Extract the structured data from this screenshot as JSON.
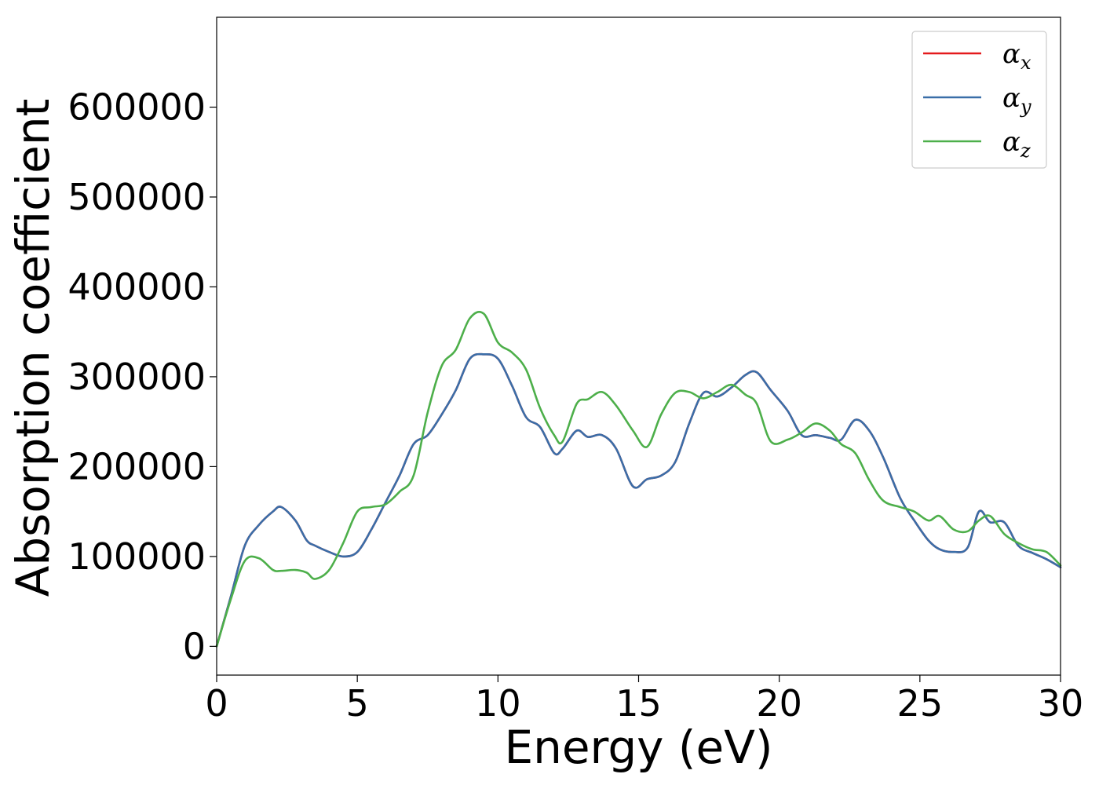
{
  "chart_data": {
    "type": "line",
    "xlabel": "Energy (eV)",
    "ylabel": "Absorption coefficient",
    "xlim": [
      0,
      30
    ],
    "ylim": [
      -32000,
      700000
    ],
    "xticks": [
      0,
      5,
      10,
      15,
      20,
      25,
      30
    ],
    "yticks": [
      0,
      100000,
      200000,
      300000,
      400000,
      500000,
      600000
    ],
    "grid": false,
    "legend_position": "top-right",
    "legend": [
      {
        "base": "α",
        "sub": "x"
      },
      {
        "base": "α",
        "sub": "y"
      },
      {
        "base": "α",
        "sub": "z"
      }
    ],
    "x": [
      0,
      0.5,
      1.0,
      1.5,
      2.0,
      2.3,
      2.8,
      3.2,
      3.5,
      4.0,
      4.5,
      5.0,
      5.5,
      6.0,
      6.5,
      7.0,
      7.5,
      8.0,
      8.5,
      9.0,
      9.5,
      10.0,
      10.5,
      11.0,
      11.5,
      12.0,
      12.3,
      12.8,
      13.2,
      13.7,
      14.2,
      14.8,
      15.3,
      15.8,
      16.3,
      16.8,
      17.3,
      17.8,
      18.3,
      18.8,
      19.2,
      19.7,
      20.3,
      20.8,
      21.3,
      21.8,
      22.2,
      22.7,
      23.2,
      23.7,
      24.3,
      24.8,
      25.3,
      25.7,
      26.2,
      26.7,
      27.1,
      27.5,
      28.0,
      28.5,
      29.0,
      29.5,
      30.0
    ],
    "series": [
      {
        "name": "αx",
        "color": "#e41a1c",
        "values": [
          0,
          55000,
          112000,
          135000,
          150000,
          155000,
          140000,
          118000,
          112000,
          105000,
          100000,
          105000,
          130000,
          160000,
          190000,
          225000,
          235000,
          258000,
          285000,
          320000,
          325000,
          320000,
          290000,
          255000,
          244000,
          215000,
          220000,
          240000,
          233000,
          235000,
          220000,
          178000,
          186000,
          190000,
          205000,
          248000,
          282000,
          278000,
          288000,
          302000,
          305000,
          285000,
          262000,
          235000,
          235000,
          232000,
          230000,
          252000,
          240000,
          210000,
          165000,
          140000,
          118000,
          108000,
          105000,
          110000,
          150000,
          138000,
          138000,
          112000,
          104000,
          97000,
          88000
        ]
      },
      {
        "name": "αy",
        "color": "#3a6ea8",
        "values": [
          0,
          55000,
          112000,
          135000,
          150000,
          155000,
          140000,
          118000,
          112000,
          105000,
          100000,
          105000,
          130000,
          160000,
          190000,
          225000,
          235000,
          258000,
          285000,
          320000,
          325000,
          320000,
          290000,
          255000,
          244000,
          215000,
          220000,
          240000,
          233000,
          235000,
          220000,
          178000,
          186000,
          190000,
          205000,
          248000,
          282000,
          278000,
          288000,
          302000,
          305000,
          285000,
          262000,
          235000,
          235000,
          232000,
          230000,
          252000,
          240000,
          210000,
          165000,
          140000,
          118000,
          108000,
          105000,
          110000,
          150000,
          138000,
          138000,
          112000,
          104000,
          97000,
          88000
        ]
      },
      {
        "name": "αz",
        "color": "#4daf4a",
        "values": [
          0,
          52000,
          95000,
          98000,
          85000,
          84000,
          85000,
          82000,
          75000,
          85000,
          115000,
          150000,
          155000,
          158000,
          172000,
          190000,
          260000,
          312000,
          330000,
          365000,
          370000,
          338000,
          327000,
          308000,
          265000,
          235000,
          228000,
          270000,
          275000,
          283000,
          268000,
          240000,
          222000,
          258000,
          282000,
          283000,
          276000,
          283000,
          291000,
          280000,
          270000,
          228000,
          230000,
          238000,
          248000,
          240000,
          225000,
          215000,
          185000,
          162000,
          155000,
          150000,
          140000,
          145000,
          130000,
          128000,
          140000,
          145000,
          125000,
          115000,
          108000,
          105000,
          90000
        ]
      }
    ]
  }
}
